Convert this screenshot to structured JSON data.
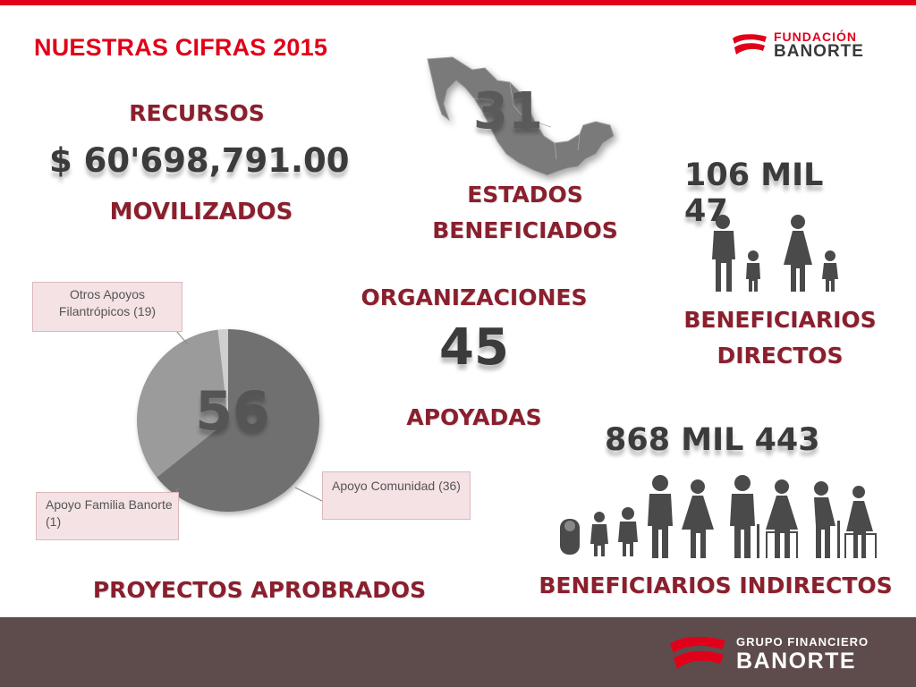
{
  "header": {
    "title": "NUESTRAS CIFRAS 2015"
  },
  "brand": {
    "logo_top": "FUNDACIÓN",
    "logo_bottom": "BANORTE",
    "accent": "#e1001a",
    "label_color": "#8a1f2e"
  },
  "recursos": {
    "label_top": "RECURSOS",
    "amount": "$ 60'698,791.00",
    "label_bottom": "MOVILIZADOS"
  },
  "estados": {
    "number": "31",
    "label_line1": "ESTADOS",
    "label_line2": "BENEFICIADOS",
    "map_icon": "mexico-map-icon"
  },
  "directos": {
    "number": "106 MIL 47",
    "label_line1": "BENEFICIARIOS",
    "label_line2": "DIRECTOS",
    "icon": "family-icon"
  },
  "organizaciones": {
    "label_top": "ORGANIZACIONES",
    "number": "45",
    "label_bottom": "APOYADAS"
  },
  "indirectos": {
    "number": "868 MIL 443",
    "label": "BENEFICIARIOS INDIRECTOS",
    "icon": "people-generations-icon"
  },
  "proyectos": {
    "center_number": "56",
    "label": "PROYECTOS APROBRADOS",
    "callouts": {
      "otros": "Otros Apoyos Filantrópicos (19)",
      "comunidad": "Apoyo Comunidad (36)",
      "familia": "Apoyo Familia Banorte (1)"
    }
  },
  "chart_data": {
    "type": "pie",
    "categories": [
      "Apoyo Comunidad",
      "Otros Apoyos Filantrópicos",
      "Apoyo Familia Banorte"
    ],
    "values": [
      36,
      19,
      1
    ],
    "colors": [
      "#6f6f6f",
      "#9b9b9b",
      "#cfcfcf"
    ]
  },
  "footer": {
    "logo_top": "GRUPO FINANCIERO",
    "logo_bottom": "BANORTE",
    "background": "#5e4c4c"
  }
}
